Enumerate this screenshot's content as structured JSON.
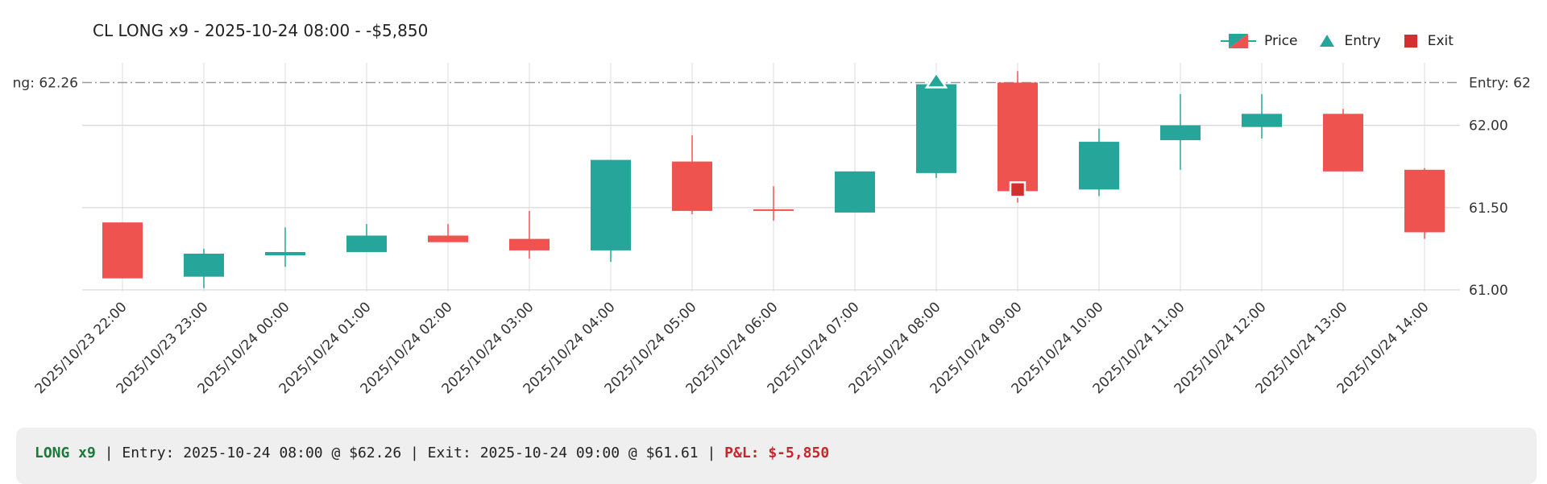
{
  "chart_data": {
    "type": "candlestick",
    "title": "CL LONG x9 - 2025-10-24 08:00 - -$5,850",
    "categories": [
      "2025/10/23 22:00",
      "2025/10/23 23:00",
      "2025/10/24 00:00",
      "2025/10/24 01:00",
      "2025/10/24 02:00",
      "2025/10/24 03:00",
      "2025/10/24 04:00",
      "2025/10/24 05:00",
      "2025/10/24 06:00",
      "2025/10/24 07:00",
      "2025/10/24 08:00",
      "2025/10/24 09:00",
      "2025/10/24 10:00",
      "2025/10/24 11:00",
      "2025/10/24 12:00",
      "2025/10/24 13:00",
      "2025/10/24 14:00"
    ],
    "candles": [
      {
        "open": 61.41,
        "high": 61.41,
        "low": 61.07,
        "close": 61.07
      },
      {
        "open": 61.08,
        "high": 61.25,
        "low": 61.01,
        "close": 61.22
      },
      {
        "open": 61.21,
        "high": 61.38,
        "low": 61.14,
        "close": 61.23
      },
      {
        "open": 61.23,
        "high": 61.4,
        "low": 61.23,
        "close": 61.33
      },
      {
        "open": 61.33,
        "high": 61.4,
        "low": 61.29,
        "close": 61.29
      },
      {
        "open": 61.31,
        "high": 61.48,
        "low": 61.19,
        "close": 61.24
      },
      {
        "open": 61.24,
        "high": 61.79,
        "low": 61.17,
        "close": 61.79
      },
      {
        "open": 61.78,
        "high": 61.94,
        "low": 61.46,
        "close": 61.48
      },
      {
        "open": 61.49,
        "high": 61.63,
        "low": 61.42,
        "close": 61.48
      },
      {
        "open": 61.47,
        "high": 61.72,
        "low": 61.47,
        "close": 61.72
      },
      {
        "open": 61.71,
        "high": 62.27,
        "low": 61.68,
        "close": 62.25
      },
      {
        "open": 62.26,
        "high": 62.33,
        "low": 61.53,
        "close": 61.6
      },
      {
        "open": 61.61,
        "high": 61.98,
        "low": 61.57,
        "close": 61.9
      },
      {
        "open": 61.91,
        "high": 62.19,
        "low": 61.73,
        "close": 62.0
      },
      {
        "open": 61.99,
        "high": 62.19,
        "low": 61.92,
        "close": 62.07
      },
      {
        "open": 62.07,
        "high": 62.1,
        "low": 61.72,
        "close": 61.72
      },
      {
        "open": 61.73,
        "high": 61.74,
        "low": 61.31,
        "close": 61.35
      }
    ],
    "yticks": [
      61.0,
      61.5,
      62.0
    ],
    "ytick_labels": [
      "61.00",
      "61.50",
      "62.00"
    ],
    "ylim": [
      60.99,
      62.38
    ],
    "reference_lines": [
      {
        "value": 62.26,
        "left_label": "ng: 62.26",
        "right_label": "Entry: 62"
      }
    ],
    "markers": [
      {
        "type": "entry",
        "category_index": 10,
        "value": 62.26
      },
      {
        "type": "exit",
        "category_index": 11,
        "value": 61.61
      }
    ],
    "legend": [
      "Price",
      "Entry",
      "Exit"
    ],
    "legend_position": "top-right",
    "colors": {
      "up": "#26a69a",
      "down": "#ef5350",
      "exit": "#d32f2f",
      "entry": "#26a69a"
    }
  },
  "footer": {
    "side": "LONG x9",
    "sep1": " | ",
    "entry": "Entry: 2025-10-24 08:00 @ $62.26",
    "sep2": " | ",
    "exit": "Exit: 2025-10-24 09:00 @ $61.61",
    "sep3": " | ",
    "pnl": "P&L: $-5,850"
  }
}
